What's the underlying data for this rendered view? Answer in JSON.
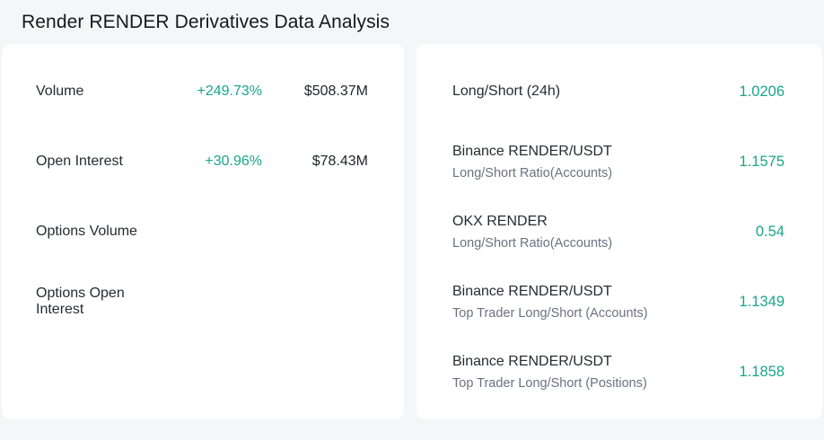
{
  "header": {
    "title": "Render RENDER Derivatives Data Analysis"
  },
  "colors": {
    "accent": "#17a689",
    "card_background": "#ffffff",
    "page_background": "#f5f6f7",
    "label_text": "#262b33",
    "sublabel_text": "#6b7280"
  },
  "derivatives_card": {
    "rows": [
      {
        "label": "Volume",
        "change": "+249.73%",
        "value": "$508.37M"
      },
      {
        "label": "Open Interest",
        "change": "+30.96%",
        "value": "$78.43M"
      },
      {
        "label": "Options Volume",
        "change": "",
        "value": ""
      },
      {
        "label": "Options Open Interest",
        "change": "",
        "value": ""
      }
    ]
  },
  "ratio_card": {
    "rows": [
      {
        "label": "Long/Short (24h)",
        "sublabel": "",
        "value": "1.0206"
      },
      {
        "label": "Binance RENDER/USDT",
        "sublabel": "Long/Short Ratio(Accounts)",
        "value": "1.1575"
      },
      {
        "label": "OKX RENDER",
        "sublabel": "Long/Short Ratio(Accounts)",
        "value": "0.54"
      },
      {
        "label": "Binance RENDER/USDT",
        "sublabel": "Top Trader Long/Short (Accounts)",
        "value": "1.1349"
      },
      {
        "label": "Binance RENDER/USDT",
        "sublabel": "Top Trader Long/Short (Positions)",
        "value": "1.1858"
      }
    ]
  }
}
